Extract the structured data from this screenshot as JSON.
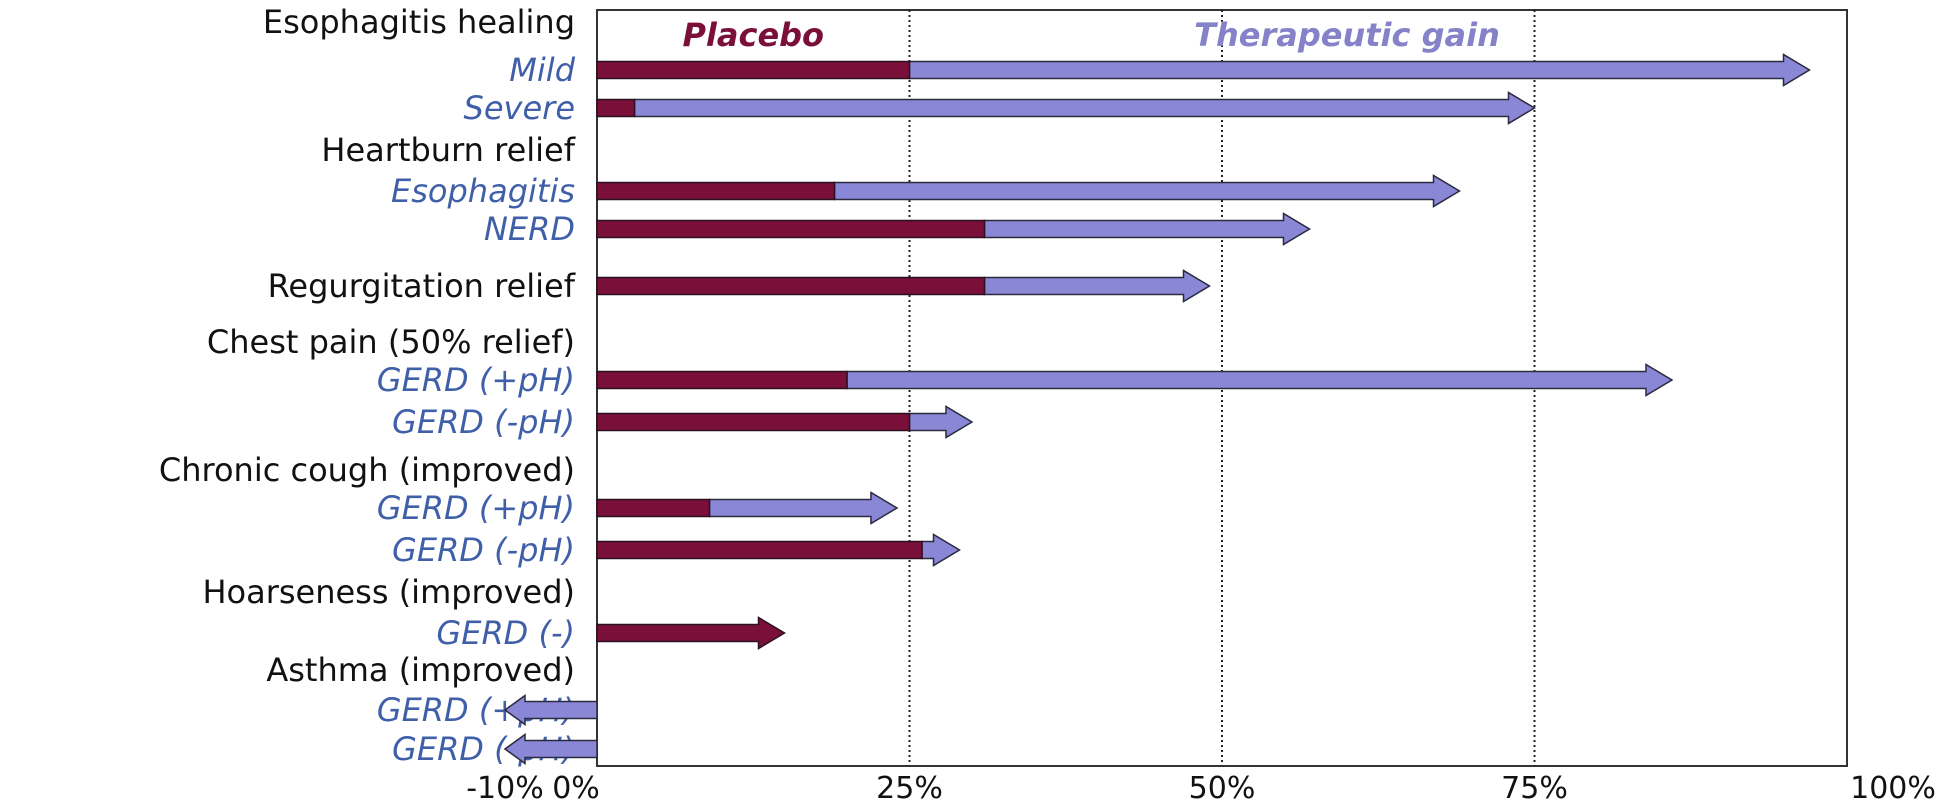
{
  "chart_data": {
    "type": "bar",
    "orientation": "horizontal",
    "xlim": [
      -10,
      100
    ],
    "x_ticks": [
      "-10%",
      "0%",
      "25%",
      "50%",
      "75%",
      "100%"
    ],
    "x_tick_values": [
      -10,
      0,
      25,
      50,
      75,
      100
    ],
    "vertical_reference_lines": [
      25,
      50,
      75
    ],
    "series": [
      {
        "name": "Placebo",
        "color": "#7a0f3a"
      },
      {
        "name": "Therapeutic gain",
        "color": "#8a87d6"
      }
    ],
    "rows": [
      {
        "label": "Esophagitis healing",
        "kind": "group"
      },
      {
        "label": "Mild",
        "kind": "item",
        "placebo": 25,
        "total": 97
      },
      {
        "label": "Severe",
        "kind": "item",
        "placebo": 3,
        "total": 75
      },
      {
        "label": "Heartburn relief",
        "kind": "group"
      },
      {
        "label": "Esophagitis",
        "kind": "item",
        "placebo": 19,
        "total": 69
      },
      {
        "label": "NERD",
        "kind": "item",
        "placebo": 31,
        "total": 57
      },
      {
        "label": "Regurgitation relief",
        "kind": "group",
        "placebo": 31,
        "total": 49
      },
      {
        "label": "Chest pain (50% relief)",
        "kind": "group"
      },
      {
        "label": "GERD (+pH)",
        "kind": "item",
        "placebo": 20,
        "total": 86
      },
      {
        "label": "GERD (-pH)",
        "kind": "item",
        "placebo": 25,
        "total": 30
      },
      {
        "label": "Chronic cough (improved)",
        "kind": "group"
      },
      {
        "label": "GERD (+pH)",
        "kind": "item",
        "placebo": 9,
        "total": 24
      },
      {
        "label": "GERD (-pH)",
        "kind": "item",
        "placebo": 26,
        "total": 29
      },
      {
        "label": "Hoarseness (improved)",
        "kind": "group"
      },
      {
        "label": "GERD (-)",
        "kind": "item",
        "placebo": 15,
        "total": 15
      },
      {
        "label": "Asthma (improved)",
        "kind": "group"
      },
      {
        "label": "GERD (+pH)",
        "kind": "item",
        "placebo": 0,
        "total": -7
      },
      {
        "label": "GERD (-pH)",
        "kind": "item",
        "placebo": 0,
        "total": -7
      }
    ]
  }
}
